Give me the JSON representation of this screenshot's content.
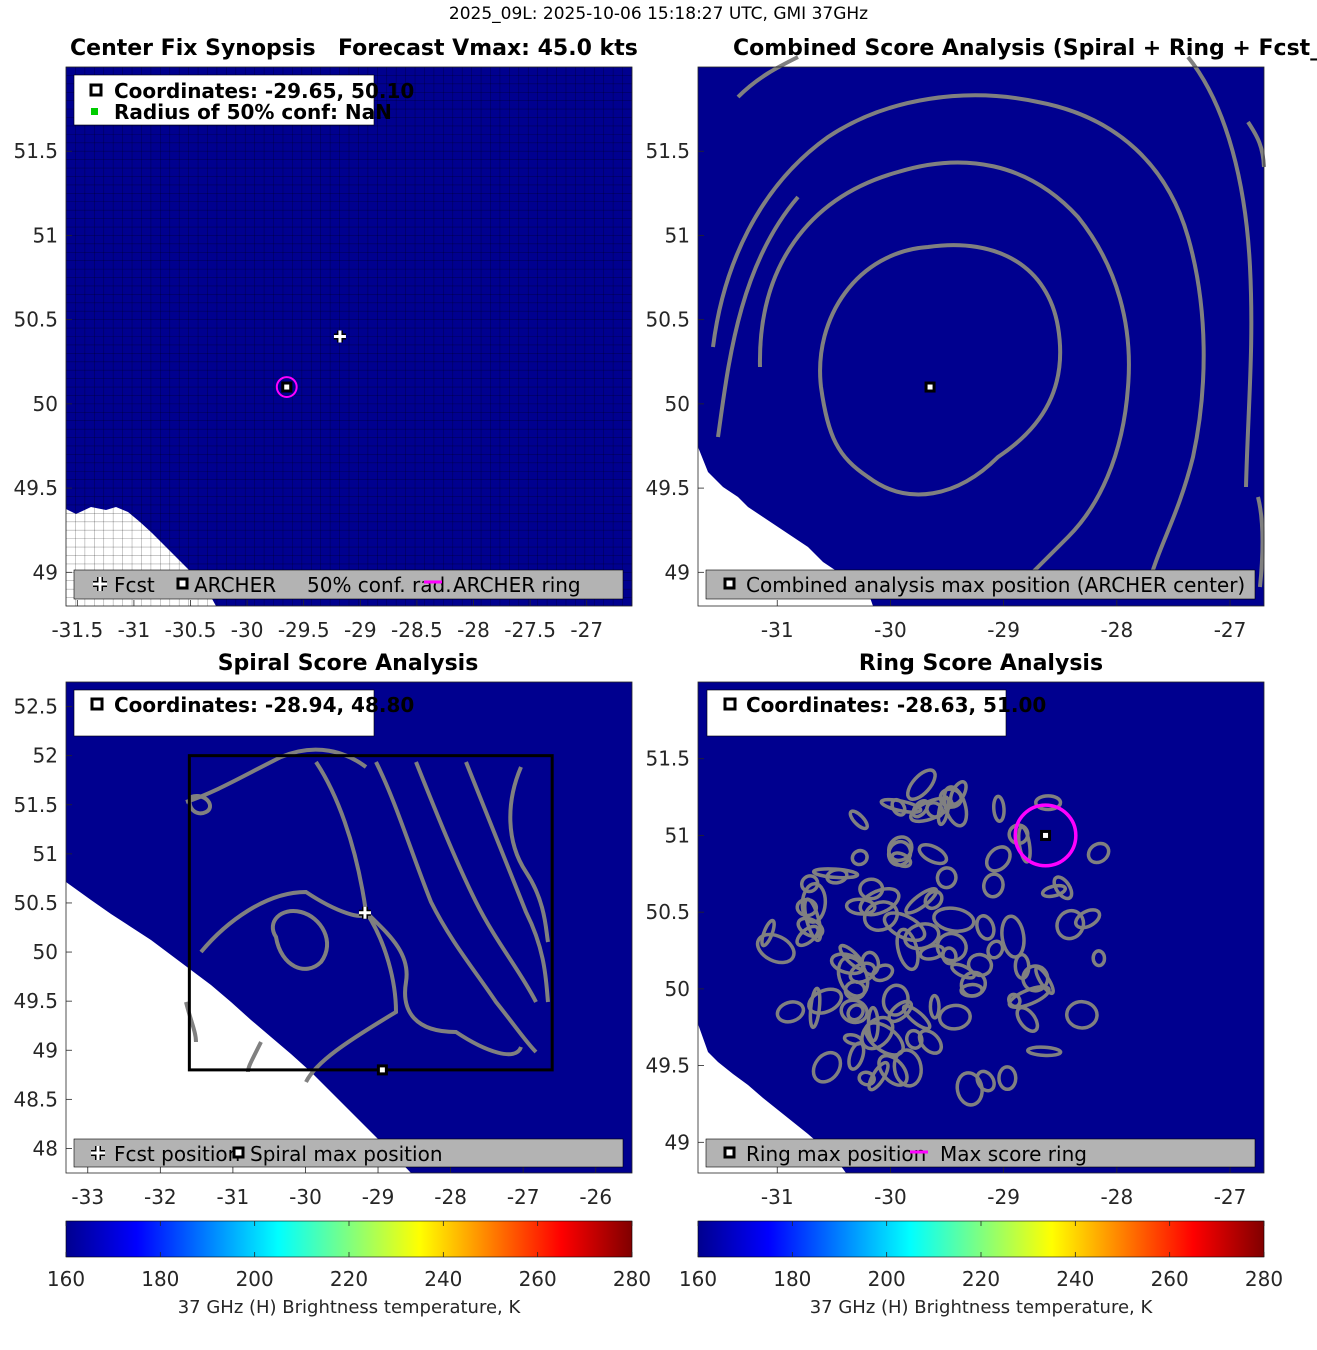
{
  "suptitle": "2025_09L: 2025-10-06 15:18:27 UTC, GMI 37GHz",
  "colors": {
    "background": "#00008F",
    "land": "#FFFFFF",
    "contour": "#808080",
    "legend_bg": "#B3B3B3",
    "ring": "#FF00FF",
    "conf_marker": "#00CC00"
  },
  "panels": {
    "synopsis": {
      "title_left": "Center Fix Synopsis",
      "title_right": "Forecast Vmax: 45.0 kts",
      "info_line1": "Coordinates: -29.65, 50.10",
      "info_line2": "Radius of 50% conf: NaN",
      "legend": [
        "Fcst",
        "ARCHER",
        "50% conf. rad.",
        "ARCHER ring"
      ]
    },
    "combined": {
      "title": "Combined Score Analysis (Spiral + Ring + Fcst_Pe",
      "legend": [
        "Combined analysis max position (ARCHER center)"
      ]
    },
    "spiral": {
      "title": "Spiral Score Analysis",
      "info_line1": "Coordinates: -28.94, 48.80",
      "legend": [
        "Fcst position",
        "Spiral max position"
      ]
    },
    "ring": {
      "title": "Ring Score Analysis",
      "info_line1": "Coordinates: -28.63, 51.00",
      "legend": [
        "Ring max position",
        "Max score ring"
      ]
    }
  },
  "colorbar": {
    "label": "37 GHz (H) Brightness temperature, K",
    "ticks": [
      "160",
      "180",
      "200",
      "220",
      "240",
      "260",
      "280"
    ],
    "range": [
      160,
      280
    ]
  },
  "chart_data": [
    {
      "type": "heatmap",
      "id": "synopsis",
      "xlim": [
        -31.6,
        -26.6
      ],
      "ylim": [
        48.8,
        52.0
      ],
      "xticks": [
        -31.5,
        -31,
        -30.5,
        -30,
        -29.5,
        -29,
        -28.5,
        -28,
        -27.5,
        -27
      ],
      "yticks": [
        49,
        49.5,
        50,
        50.5,
        51,
        51.5
      ],
      "grid": "on",
      "points": [
        {
          "label": "Fcst",
          "x": -29.18,
          "y": 50.4,
          "marker": "cross"
        },
        {
          "label": "ARCHER",
          "x": -29.65,
          "y": 50.1,
          "marker": "square"
        }
      ],
      "ring": {
        "x": -29.65,
        "y": 50.1,
        "radius_deg": 0.07
      }
    },
    {
      "type": "heatmap",
      "id": "combined",
      "xlim": [
        -31.7,
        -26.7
      ],
      "ylim": [
        48.8,
        52.0
      ],
      "xticks": [
        -31,
        -30,
        -29,
        -28,
        -27
      ],
      "yticks": [
        49,
        49.5,
        50,
        50.5,
        51,
        51.5
      ],
      "grid": "off",
      "points": [
        {
          "label": "Combined analysis max position (ARCHER center)",
          "x": -29.65,
          "y": 50.1,
          "marker": "square"
        }
      ]
    },
    {
      "type": "heatmap",
      "id": "spiral",
      "xlim": [
        -33.3,
        -25.5
      ],
      "ylim": [
        47.75,
        52.75
      ],
      "xticks": [
        -33,
        -32,
        -31,
        -30,
        -29,
        -28,
        -27,
        -26
      ],
      "yticks": [
        48,
        48.5,
        49,
        49.5,
        50,
        50.5,
        51,
        51.5,
        52,
        52.5
      ],
      "grid": "off",
      "search_box": {
        "x0": -31.6,
        "x1": -26.6,
        "y0": 48.8,
        "y1": 52.0
      },
      "points": [
        {
          "label": "Fcst position",
          "x": -29.18,
          "y": 50.4,
          "marker": "cross"
        },
        {
          "label": "Spiral max position",
          "x": -28.94,
          "y": 48.8,
          "marker": "square"
        }
      ]
    },
    {
      "type": "heatmap",
      "id": "ring",
      "xlim": [
        -31.7,
        -26.7
      ],
      "ylim": [
        48.8,
        52.0
      ],
      "xticks": [
        -31,
        -30,
        -29,
        -28,
        -27
      ],
      "yticks": [
        49,
        49.5,
        50,
        50.5,
        51,
        51.5
      ],
      "grid": "off",
      "points": [
        {
          "label": "Ring max position",
          "x": -28.63,
          "y": 51.0,
          "marker": "square"
        }
      ],
      "ring": {
        "x": -28.63,
        "y": 51.0,
        "radius_deg": 0.25
      }
    }
  ]
}
